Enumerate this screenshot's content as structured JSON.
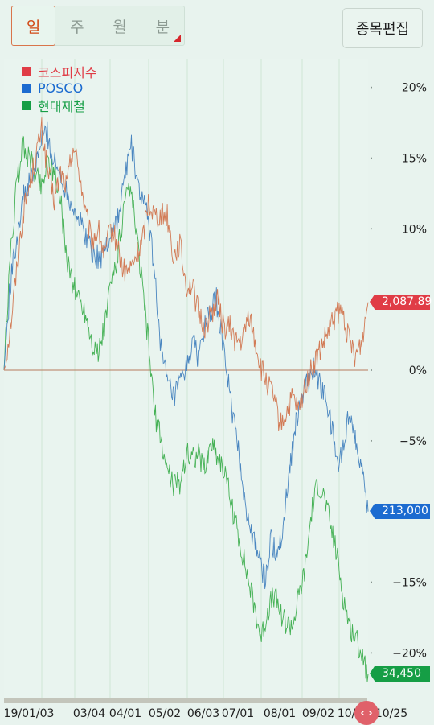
{
  "period_tabs": [
    {
      "label": "일",
      "active": true
    },
    {
      "label": "주",
      "active": false
    },
    {
      "label": "월",
      "active": false
    },
    {
      "label": "분",
      "active": false
    }
  ],
  "edit_button_label": "종목편집",
  "scroll_handle_icon": "‹ ›",
  "chart_data": {
    "type": "line",
    "y_unit": "%",
    "ylim": [
      -21.5,
      22
    ],
    "y_ticks": [
      20,
      15,
      10,
      5,
      0,
      -5,
      -10,
      -15,
      -20
    ],
    "y_tick_labels": [
      "20%",
      "15%",
      "10%",
      "5%",
      "0%",
      "−5%",
      "−10%",
      "−15%",
      "−20%"
    ],
    "x_ticks": [
      "19/01/03",
      "03/04",
      "04/01",
      "05/02",
      "06/03",
      "07/01",
      "08/01",
      "09/02",
      "10/01",
      "10/25"
    ],
    "grid": true,
    "legend_position": "top-left",
    "baseline": 0,
    "series": [
      {
        "name": "코스피지수",
        "color": "#e03c46",
        "line_color": "#d27b56",
        "last_value_label": "2,087.89",
        "values": [
          0,
          3,
          7,
          11,
          13,
          15,
          17,
          14,
          12,
          14,
          13,
          16,
          14,
          11,
          9,
          10,
          8,
          10,
          9,
          7,
          7,
          8,
          9,
          12,
          11,
          11,
          11,
          8,
          9,
          6,
          6,
          4,
          3,
          4,
          5,
          3,
          3,
          2,
          2,
          4,
          2,
          0,
          -1,
          -2,
          -4,
          -3,
          -2,
          -3,
          -1,
          0,
          1,
          2,
          3,
          4,
          4,
          2,
          1,
          2,
          4.8
        ]
      },
      {
        "name": "POSCO",
        "color": "#1c6bd0",
        "line_color": "#4a86c0",
        "last_value_label": "213,000",
        "values": [
          0,
          6,
          9,
          12,
          13,
          14,
          16,
          17,
          15,
          14,
          13,
          12,
          11,
          10,
          9,
          8,
          8,
          9,
          10,
          11,
          14,
          16,
          13,
          12,
          10,
          6,
          1,
          -1,
          -2,
          -1,
          0,
          2,
          1,
          3,
          4,
          5,
          2,
          -1,
          -4,
          -7,
          -10,
          -12,
          -13,
          -15,
          -12,
          -13,
          -11,
          -7,
          -4,
          -2,
          -1,
          0,
          -1,
          -2,
          -4,
          -7,
          -5,
          -3,
          -5,
          -7,
          -10
        ]
      },
      {
        "name": "현대제철",
        "color": "#159e45",
        "line_color": "#45b155",
        "last_value_label": "34,450",
        "values": [
          0,
          8,
          13,
          16,
          15,
          14,
          13,
          15,
          14,
          12,
          8,
          6,
          5,
          4,
          2,
          1,
          3,
          6,
          8,
          11,
          13,
          10,
          6,
          2,
          -3,
          -5,
          -7,
          -8,
          -8,
          -6,
          -6,
          -6,
          -7,
          -5,
          -6,
          -7,
          -9,
          -11,
          -13,
          -15,
          -17,
          -19,
          -17,
          -16,
          -17,
          -18,
          -18,
          -16,
          -14,
          -10,
          -8,
          -9,
          -11,
          -13,
          -16,
          -18,
          -19,
          -20,
          -21.5
        ]
      }
    ]
  }
}
